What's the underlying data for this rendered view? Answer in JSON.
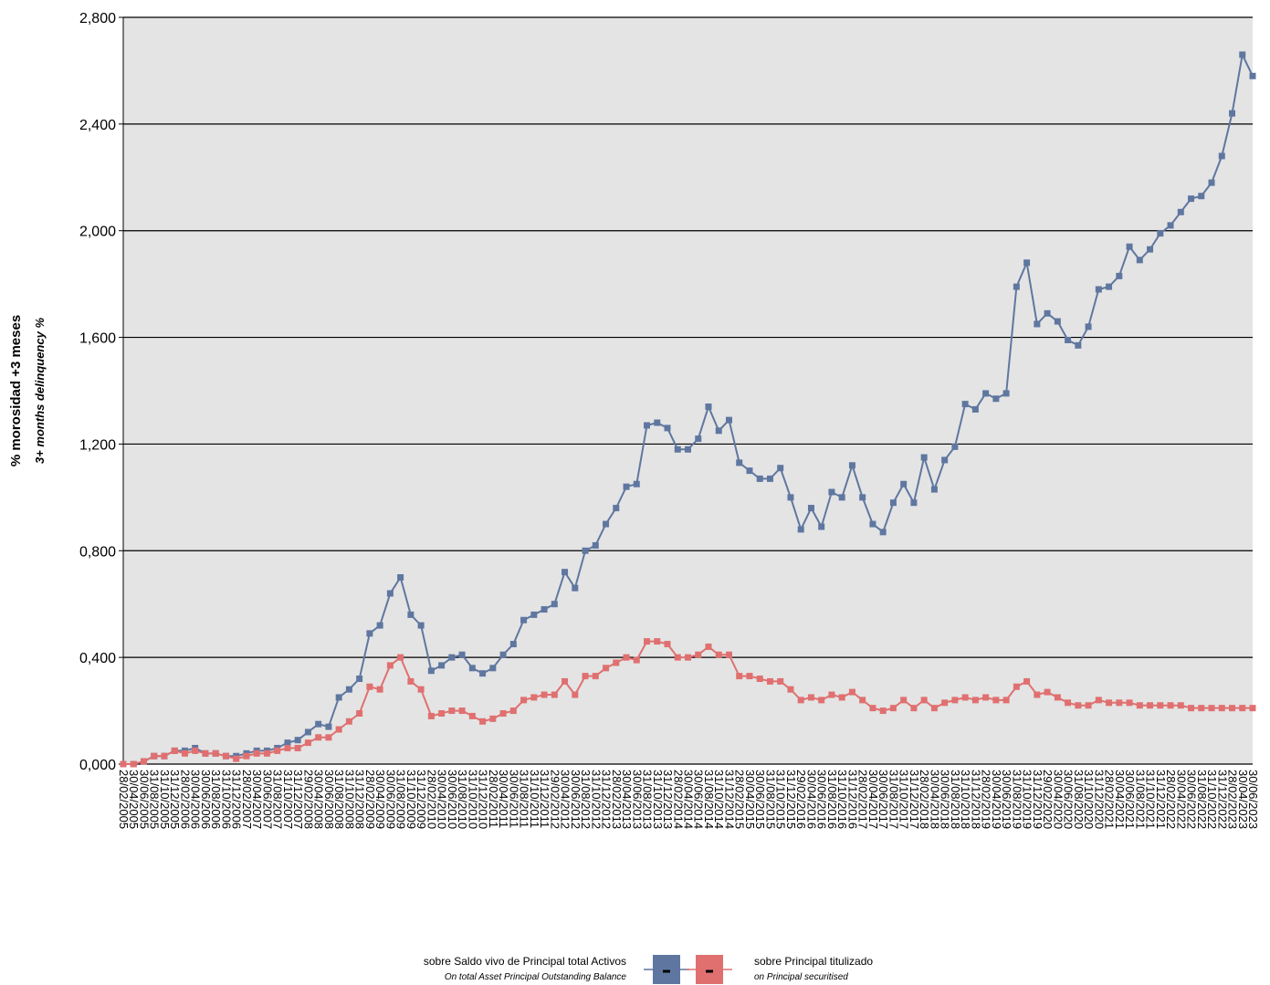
{
  "chart_data": {
    "type": "line",
    "y_title": "% morosidad +3 meses",
    "y_subtitle": "3+ months delinquency %",
    "categories": [
      "28/02/2005",
      "30/04/2005",
      "30/06/2005",
      "31/08/2005",
      "31/10/2005",
      "31/12/2005",
      "28/02/2006",
      "30/04/2006",
      "30/06/2006",
      "31/08/2006",
      "31/10/2006",
      "31/12/2006",
      "28/02/2007",
      "30/04/2007",
      "30/06/2007",
      "31/08/2007",
      "31/10/2007",
      "31/12/2007",
      "29/02/2008",
      "30/04/2008",
      "30/06/2008",
      "31/08/2008",
      "31/10/2008",
      "31/12/2008",
      "28/02/2009",
      "30/04/2009",
      "30/06/2009",
      "31/08/2009",
      "31/10/2009",
      "31/12/2009",
      "28/02/2010",
      "30/04/2010",
      "30/06/2010",
      "31/08/2010",
      "31/10/2010",
      "31/12/2010",
      "28/02/2011",
      "30/04/2011",
      "30/06/2011",
      "31/08/2011",
      "31/10/2011",
      "31/12/2011",
      "29/02/2012",
      "30/04/2012",
      "30/06/2012",
      "31/08/2012",
      "31/10/2012",
      "31/12/2012",
      "28/02/2013",
      "30/04/2013",
      "30/06/2013",
      "31/08/2013",
      "31/10/2013",
      "31/12/2013",
      "28/02/2014",
      "30/04/2014",
      "30/06/2014",
      "31/08/2014",
      "31/10/2014",
      "31/12/2014",
      "28/02/2015",
      "30/04/2015",
      "30/06/2015",
      "31/08/2015",
      "31/10/2015",
      "31/12/2015",
      "29/02/2016",
      "30/04/2016",
      "30/06/2016",
      "31/08/2016",
      "31/10/2016",
      "31/12/2016",
      "28/02/2017",
      "30/04/2017",
      "30/06/2017",
      "31/08/2017",
      "31/10/2017",
      "31/12/2017",
      "28/02/2018",
      "30/04/2018",
      "30/06/2018",
      "31/08/2018",
      "31/10/2018",
      "31/12/2018",
      "28/02/2019",
      "30/04/2019",
      "30/06/2019",
      "31/08/2019",
      "31/10/2019",
      "31/12/2019",
      "29/02/2020",
      "30/04/2020",
      "30/06/2020",
      "31/08/2020",
      "31/10/2020",
      "31/12/2020",
      "28/02/2021",
      "30/04/2021",
      "30/06/2021",
      "31/08/2021",
      "31/10/2021",
      "31/12/2021",
      "28/02/2022",
      "30/04/2022",
      "30/06/2022",
      "31/08/2022",
      "31/10/2022",
      "31/12/2022",
      "28/02/2023",
      "30/04/2023",
      "30/06/2023"
    ],
    "series": [
      {
        "name": "sobre Saldo vivo de Principal total Activos",
        "name_en": "On total Asset Principal Outstanding Balance",
        "color": "#5f77a0",
        "values": [
          0,
          0,
          0.01,
          0.03,
          0.03,
          0.05,
          0.05,
          0.06,
          0.04,
          0.04,
          0.03,
          0.03,
          0.04,
          0.05,
          0.05,
          0.06,
          0.08,
          0.09,
          0.12,
          0.15,
          0.14,
          0.25,
          0.28,
          0.32,
          0.49,
          0.52,
          0.64,
          0.7,
          0.56,
          0.52,
          0.35,
          0.37,
          0.4,
          0.41,
          0.36,
          0.34,
          0.36,
          0.41,
          0.45,
          0.54,
          0.56,
          0.58,
          0.6,
          0.72,
          0.66,
          0.8,
          0.82,
          0.9,
          0.96,
          1.04,
          1.05,
          1.27,
          1.28,
          1.26,
          1.18,
          1.18,
          1.22,
          1.34,
          1.25,
          1.29,
          1.13,
          1.1,
          1.07,
          1.07,
          1.11,
          1.0,
          0.88,
          0.96,
          0.89,
          1.02,
          1.0,
          1.12,
          1.0,
          0.9,
          0.87,
          0.98,
          1.05,
          0.98,
          1.15,
          1.03,
          1.14,
          1.19,
          1.35,
          1.33,
          1.39,
          1.37,
          1.39,
          1.79,
          1.88,
          1.65,
          1.69,
          1.66,
          1.59,
          1.57,
          1.64,
          1.78,
          1.79,
          1.83,
          1.94,
          1.89,
          1.93,
          1.99,
          2.02,
          2.07,
          2.12,
          2.13,
          2.18,
          2.28,
          2.44,
          2.66,
          2.58
        ]
      },
      {
        "name": "sobre Principal titulizado",
        "name_en": "on Principal securitised",
        "color": "#e07070",
        "values": [
          0,
          0,
          0.01,
          0.03,
          0.03,
          0.05,
          0.04,
          0.05,
          0.04,
          0.04,
          0.03,
          0.02,
          0.03,
          0.04,
          0.04,
          0.05,
          0.06,
          0.06,
          0.08,
          0.1,
          0.1,
          0.13,
          0.16,
          0.19,
          0.29,
          0.28,
          0.37,
          0.4,
          0.31,
          0.28,
          0.18,
          0.19,
          0.2,
          0.2,
          0.18,
          0.16,
          0.17,
          0.19,
          0.2,
          0.24,
          0.25,
          0.26,
          0.26,
          0.31,
          0.26,
          0.33,
          0.33,
          0.36,
          0.38,
          0.4,
          0.39,
          0.46,
          0.46,
          0.45,
          0.4,
          0.4,
          0.41,
          0.44,
          0.41,
          0.41,
          0.33,
          0.33,
          0.32,
          0.31,
          0.31,
          0.28,
          0.24,
          0.25,
          0.24,
          0.26,
          0.25,
          0.27,
          0.24,
          0.21,
          0.2,
          0.21,
          0.24,
          0.21,
          0.24,
          0.21,
          0.23,
          0.24,
          0.25,
          0.24,
          0.25,
          0.24,
          0.24,
          0.29,
          0.31,
          0.26,
          0.27,
          0.25,
          0.23,
          0.22,
          0.22,
          0.24,
          0.23,
          0.23,
          0.23,
          0.22,
          0.22,
          0.22,
          0.22,
          0.22,
          0.21,
          0.21,
          0.21,
          0.21,
          0.21,
          0.21,
          0.21
        ]
      }
    ],
    "ylim": [
      0,
      2.8
    ],
    "yticks": [
      {
        "value": 0,
        "label": "0,000"
      },
      {
        "value": 0.4,
        "label": "0,400"
      },
      {
        "value": 0.8,
        "label": "0,800"
      },
      {
        "value": 1.2,
        "label": "1,200"
      },
      {
        "value": 1.6,
        "label": "1,600"
      },
      {
        "value": 2.0,
        "label": "2,000"
      },
      {
        "value": 2.4,
        "label": "2,400"
      },
      {
        "value": 2.8,
        "label": "2,800"
      }
    ],
    "grid": true,
    "legend": "bottom"
  }
}
